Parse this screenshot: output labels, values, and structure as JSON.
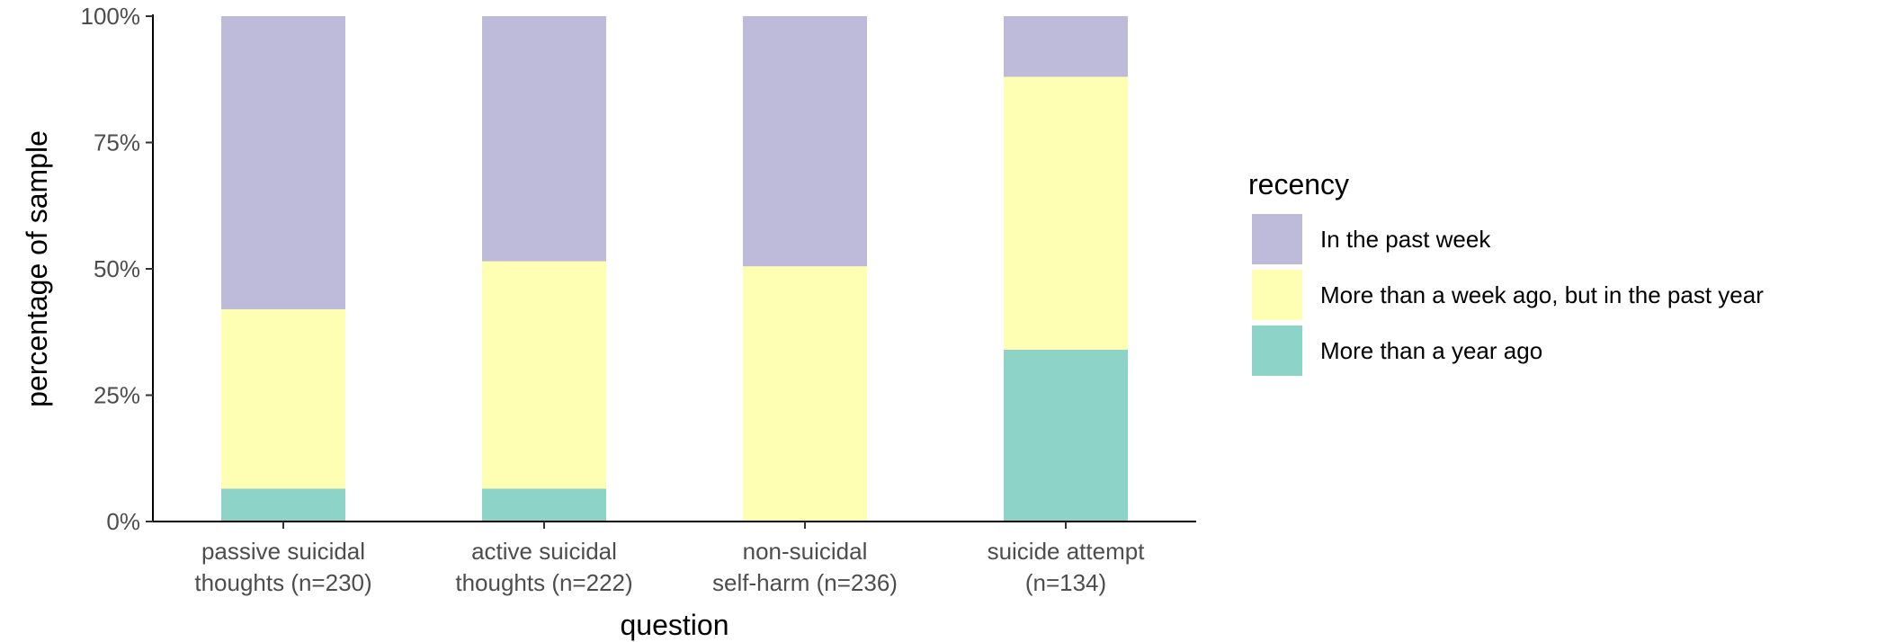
{
  "chart_data": {
    "type": "bar",
    "stacked": true,
    "xlabel": "question",
    "ylabel": "percentage of sample",
    "ylim": [
      0,
      1
    ],
    "y_ticks": [
      {
        "value": 0,
        "label": "0%"
      },
      {
        "value": 0.25,
        "label": "25%"
      },
      {
        "value": 0.5,
        "label": "50%"
      },
      {
        "value": 0.75,
        "label": "75%"
      },
      {
        "value": 1,
        "label": "100%"
      }
    ],
    "categories": [
      [
        "passive suicidal",
        "thoughts (n=230)"
      ],
      [
        "active suicidal",
        "thoughts (n=222)"
      ],
      [
        "non-suicidal",
        "self-harm (n=236)"
      ],
      [
        "suicide attempt",
        "(n=134)"
      ]
    ],
    "legend_title": "recency",
    "legend_position": "right",
    "series": [
      {
        "name": "In the past week",
        "color": "#bebada",
        "values": [
          0.58,
          0.485,
          0.495,
          0.12
        ]
      },
      {
        "name": "More than a week ago, but in the past year",
        "color": "#ffffb3",
        "values": [
          0.355,
          0.45,
          0.505,
          0.54
        ]
      },
      {
        "name": "More than a year ago",
        "color": "#8dd3c7",
        "values": [
          0.065,
          0.065,
          0.0,
          0.34
        ]
      }
    ],
    "stack_order_bottom_to_top": [
      2,
      1,
      0
    ],
    "grid": false
  }
}
